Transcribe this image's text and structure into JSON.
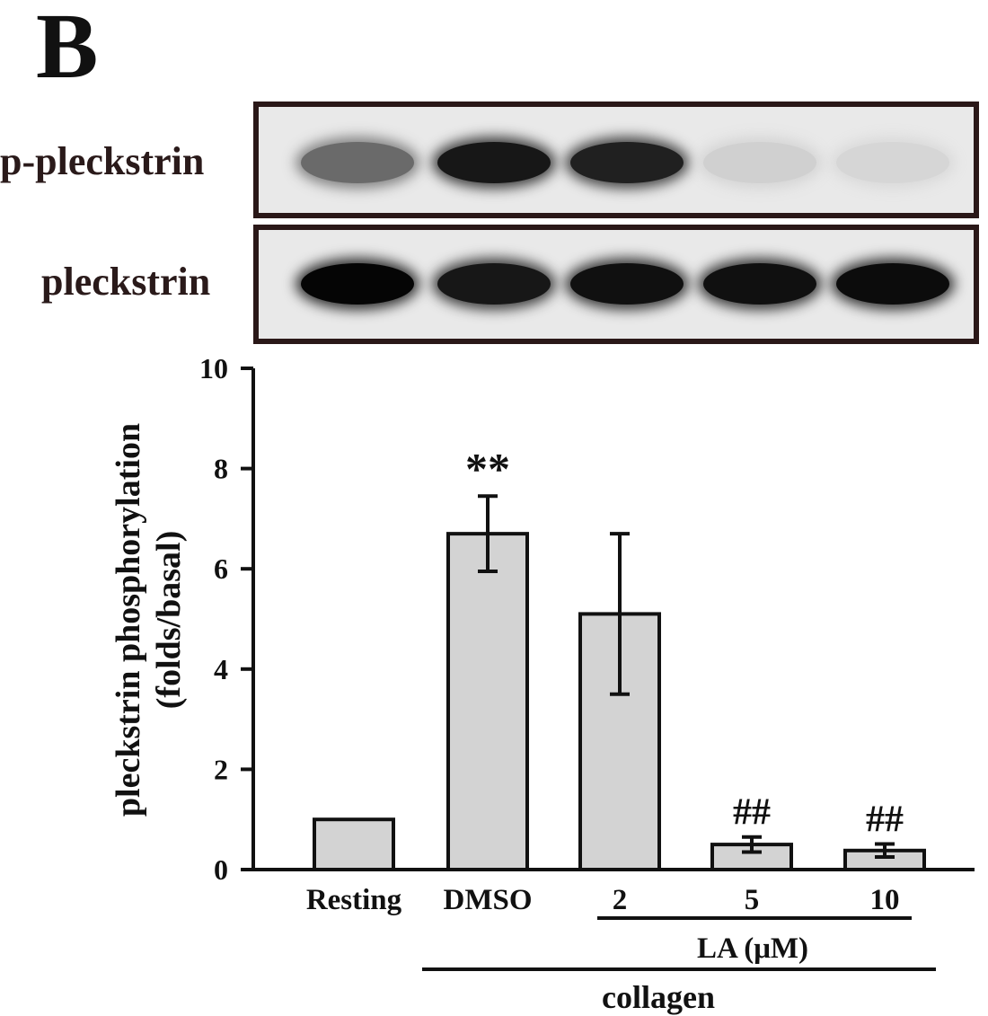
{
  "panel_label": "B",
  "blot": {
    "rows": [
      {
        "label": "p-pleckstrin",
        "intensity": [
          0.55,
          0.92,
          0.88,
          0.1,
          0.07
        ]
      },
      {
        "label": "pleckstrin",
        "intensity": [
          1.0,
          0.92,
          0.95,
          0.95,
          0.97
        ]
      }
    ]
  },
  "chart_data": {
    "type": "bar",
    "categories": [
      "Resting",
      "DMSO",
      "2",
      "5",
      "10"
    ],
    "values": [
      1.0,
      6.7,
      5.1,
      0.5,
      0.38
    ],
    "errors": [
      0,
      0.75,
      1.6,
      0.15,
      0.13
    ],
    "annotations": [
      "",
      "**",
      "",
      "##",
      "##"
    ],
    "ylabel_line1": "pleckstrin phosphorylation",
    "ylabel_line2": "(folds/basal)",
    "ylim": [
      0,
      10
    ],
    "yticks": [
      "0",
      "2",
      "4",
      "6",
      "8",
      "10"
    ],
    "group_label_la": "LA (μM)",
    "group_label_collagen": "collagen",
    "bar_color": "#d3d3d3"
  }
}
